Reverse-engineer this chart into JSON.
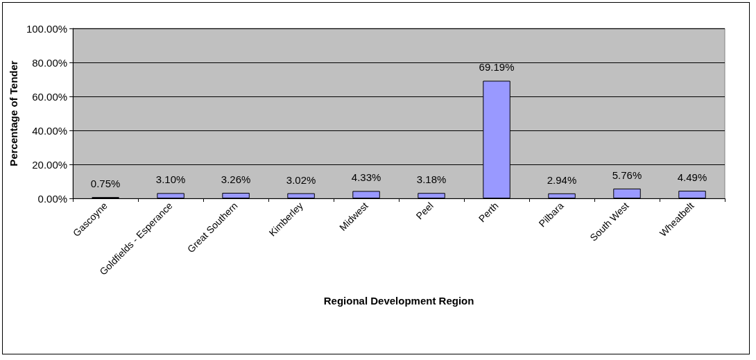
{
  "chart_data": {
    "type": "bar",
    "xlabel": "Regional Development Region",
    "ylabel": "Percentage of Tender",
    "categories": [
      "Gascoyne",
      "Goldfields - Esperance",
      "Great Southern",
      "Kimberley",
      "Midwest",
      "Peel",
      "Perth",
      "Pilbara",
      "South West",
      "Wheatbelt"
    ],
    "values": [
      0.75,
      3.1,
      3.26,
      3.02,
      4.33,
      3.18,
      69.19,
      2.94,
      5.76,
      4.49
    ],
    "value_labels": [
      "0.75%",
      "3.10%",
      "3.26%",
      "3.02%",
      "4.33%",
      "3.18%",
      "69.19%",
      "2.94%",
      "5.76%",
      "4.49%"
    ],
    "color": "#9999ff",
    "ylim": [
      0,
      100
    ],
    "yticks": [
      {
        "value": 0,
        "label": "0.00%"
      },
      {
        "value": 20,
        "label": "20.00%"
      },
      {
        "value": 40,
        "label": "40.00%"
      },
      {
        "value": 60,
        "label": "60.00%"
      },
      {
        "value": 80,
        "label": "80.00%"
      },
      {
        "value": 100,
        "label": "100.00%"
      }
    ],
    "grid": "y"
  }
}
